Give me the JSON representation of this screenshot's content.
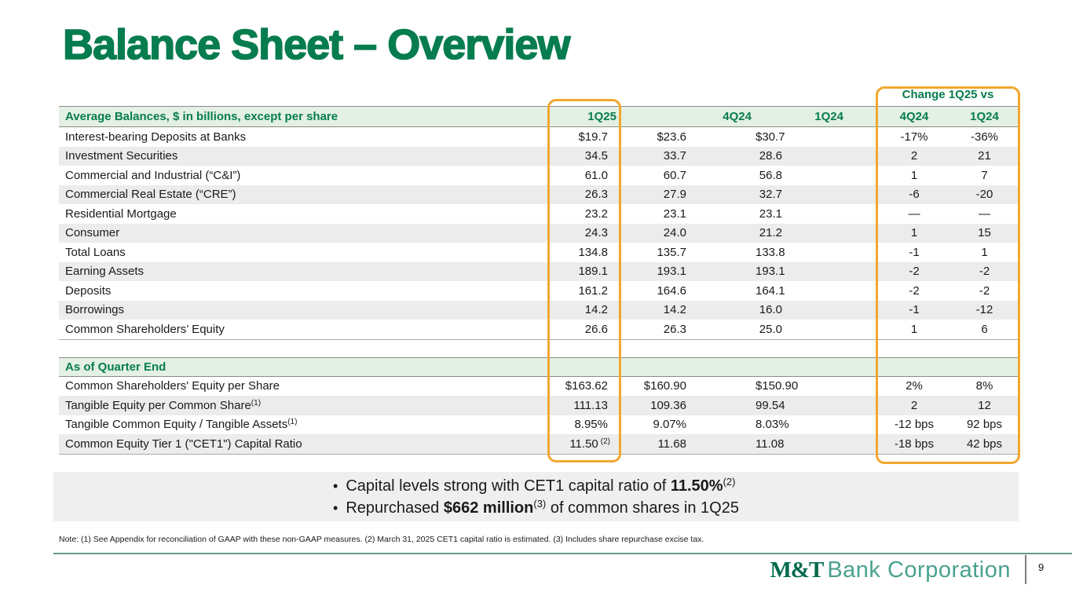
{
  "title": "Balance Sheet – Overview",
  "table": {
    "change_header": "Change 1Q25 vs",
    "columns": [
      "1Q25",
      "4Q24",
      "1Q24",
      "4Q24",
      "1Q24"
    ],
    "section1": {
      "header": "Average Balances, $ in billions, except per share",
      "rows": [
        {
          "label": "Interest-bearing Deposits at Banks",
          "label_sup": "",
          "v1": "$19.7",
          "v1_sup": "",
          "v2": "$23.6",
          "v3": "$30.7",
          "c1": "-17%",
          "c2": "-36%"
        },
        {
          "label": "Investment Securities",
          "label_sup": "",
          "v1": "34.5",
          "v1_sup": "",
          "v2": "33.7",
          "v3": "28.6",
          "c1": "2",
          "c2": "21"
        },
        {
          "label": "Commercial and Industrial (“C&I”)",
          "label_sup": "",
          "v1": "61.0",
          "v1_sup": "",
          "v2": "60.7",
          "v3": "56.8",
          "c1": "1",
          "c2": "7"
        },
        {
          "label": "Commercial Real Estate (“CRE”)",
          "label_sup": "",
          "v1": "26.3",
          "v1_sup": "",
          "v2": "27.9",
          "v3": "32.7",
          "c1": "-6",
          "c2": "-20"
        },
        {
          "label": "Residential Mortgage",
          "label_sup": "",
          "v1": "23.2",
          "v1_sup": "",
          "v2": "23.1",
          "v3": "23.1",
          "c1": "—",
          "c2": "—"
        },
        {
          "label": "Consumer",
          "label_sup": "",
          "v1": "24.3",
          "v1_sup": "",
          "v2": "24.0",
          "v3": "21.2",
          "c1": "1",
          "c2": "15"
        },
        {
          "label": "Total Loans",
          "label_sup": "",
          "v1": "134.8",
          "v1_sup": "",
          "v2": "135.7",
          "v3": "133.8",
          "c1": "-1",
          "c2": "1"
        },
        {
          "label": "Earning Assets",
          "label_sup": "",
          "v1": "189.1",
          "v1_sup": "",
          "v2": "193.1",
          "v3": "193.1",
          "c1": "-2",
          "c2": "-2"
        },
        {
          "label": "Deposits",
          "label_sup": "",
          "v1": "161.2",
          "v1_sup": "",
          "v2": "164.6",
          "v3": "164.1",
          "c1": "-2",
          "c2": "-2"
        },
        {
          "label": "Borrowings",
          "label_sup": "",
          "v1": "14.2",
          "v1_sup": "",
          "v2": "14.2",
          "v3": "16.0",
          "c1": "-1",
          "c2": "-12"
        },
        {
          "label": "Common Shareholders’ Equity",
          "label_sup": "",
          "v1": "26.6",
          "v1_sup": "",
          "v2": "26.3",
          "v3": "25.0",
          "c1": "1",
          "c2": "6"
        }
      ]
    },
    "section2": {
      "header": "As of Quarter End",
      "rows": [
        {
          "label": "Common Shareholders' Equity per Share",
          "label_sup": "",
          "v1": "$163.62",
          "v1_sup": "",
          "v2": "$160.90",
          "v3": "$150.90",
          "c1": "2%",
          "c2": "8%"
        },
        {
          "label": "Tangible Equity per Common Share",
          "label_sup": "(1)",
          "v1": "111.13",
          "v1_sup": "",
          "v2": "109.36",
          "v3": "99.54",
          "c1": "2",
          "c2": "12"
        },
        {
          "label": "Tangible Common Equity / Tangible Assets",
          "label_sup": "(1)",
          "v1": "8.95%",
          "v1_sup": "",
          "v2": "9.07%",
          "v3": "8.03%",
          "c1": "-12 bps",
          "c2": "92 bps"
        },
        {
          "label": "Common Equity Tier 1 (\"CET1\") Capital Ratio",
          "label_sup": "",
          "v1": "11.50",
          "v1_sup": "(2)",
          "v2": "11.68",
          "v3": "11.08",
          "c1": "-18 bps",
          "c2": "42 bps"
        }
      ]
    }
  },
  "bullets": [
    {
      "pre": "Capital levels strong with CET1 capital ratio of ",
      "bold": "11.50%",
      "sup": "(2)",
      "post": ""
    },
    {
      "pre": "Repurchased ",
      "bold": "$662 million",
      "sup": "(3)",
      "post": " of common shares in 1Q25"
    }
  ],
  "note": "Note: (1) See Appendix for reconciliation of GAAP with these non-GAAP measures. (2) March 31, 2025 CET1 capital ratio is estimated. (3) Includes share repurchase excise tax.",
  "footer": {
    "logo_mt": "M&T",
    "logo_text": "Bank Corporation",
    "page_number": "9"
  },
  "colors": {
    "brand_green": "#077C4F",
    "header_band_green": "#E3F0E3",
    "row_stripe_gray": "#ECECEC",
    "highlight_orange": "#F2A72E",
    "bullet_band_gray": "#EFEFEF",
    "logo_dark_green": "#00694C",
    "logo_teal": "#49A28E"
  }
}
